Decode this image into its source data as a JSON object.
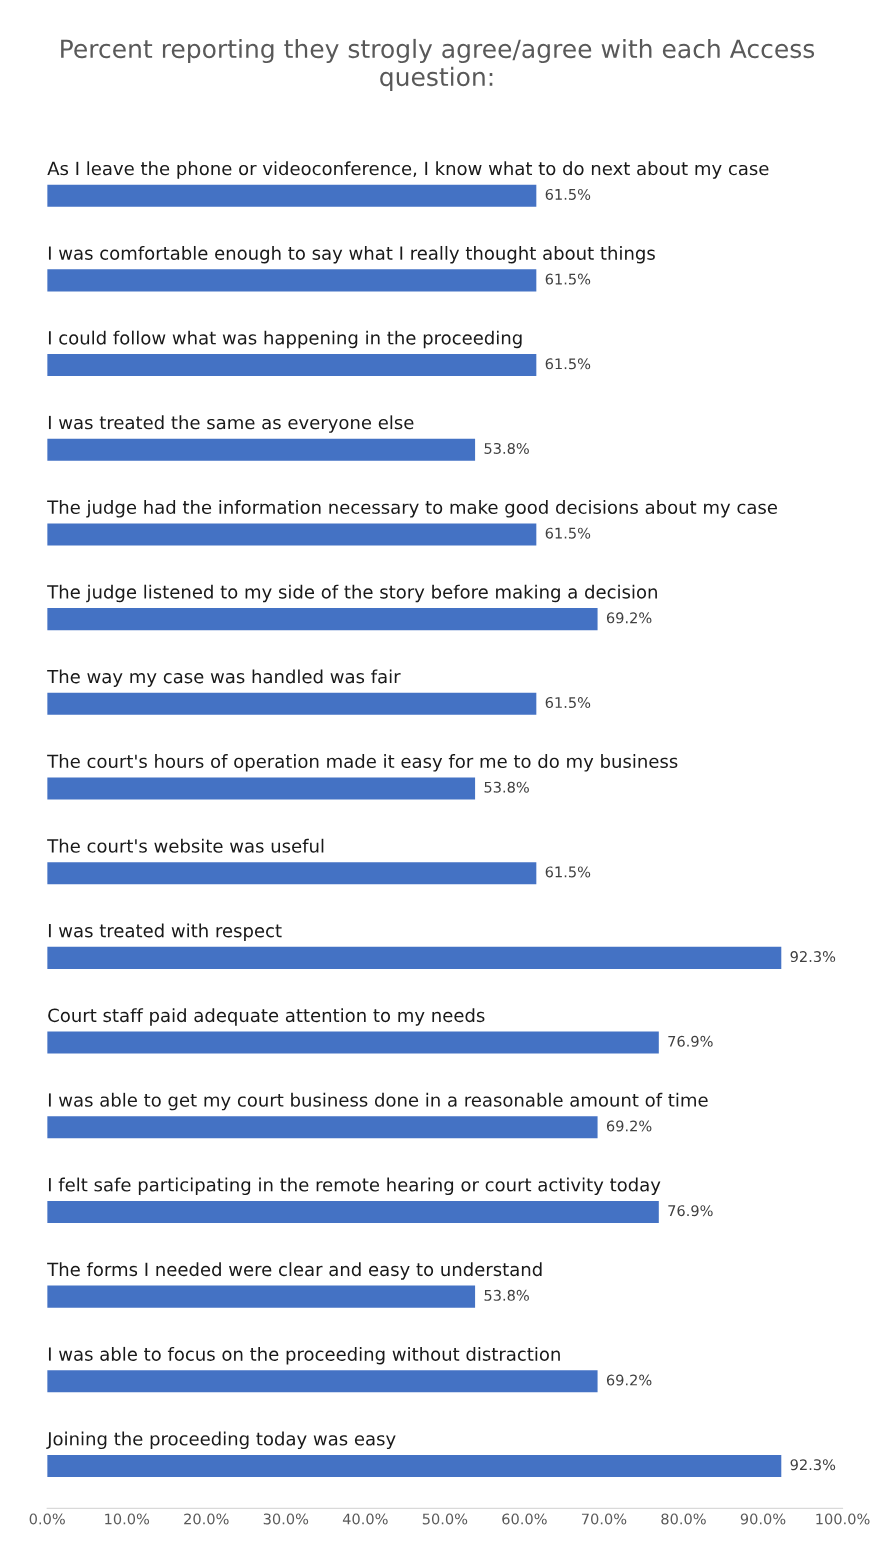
{
  "chart_data": {
    "type": "bar",
    "orientation": "horizontal",
    "title": "Percent reporting they strogly agree/agree with each Access question:",
    "categories": [
      "As I leave the phone or videoconference, I know what to do next about my case",
      "I was comfortable enough to say what I really thought about things",
      "I could follow what was happening in the proceeding",
      "I was treated the same as everyone else",
      "The judge had the information necessary to make good decisions about my case",
      "The judge listened to my side of the story before making a decision",
      "The way my case was handled was fair",
      "The court's hours of operation made it easy for me to do my business",
      "The court's website was useful",
      "I was treated with respect",
      "Court staff paid adequate attention to my needs",
      "I was able to get my court business done in a reasonable amount of time",
      "I felt safe participating in the remote hearing or court activity today",
      "The forms I needed were clear and easy to understand",
      "I was able to focus on the proceeding without distraction",
      "Joining the proceeding today was easy"
    ],
    "values": [
      61.5,
      61.5,
      61.5,
      53.8,
      61.5,
      69.2,
      61.5,
      53.8,
      61.5,
      92.3,
      76.9,
      69.2,
      76.9,
      53.8,
      69.2,
      92.3
    ],
    "value_labels": [
      "61.5%",
      "61.5%",
      "61.5%",
      "53.8%",
      "61.5%",
      "69.2%",
      "61.5%",
      "53.8%",
      "61.5%",
      "92.3%",
      "76.9%",
      "69.2%",
      "76.9%",
      "53.8%",
      "69.2%",
      "92.3%"
    ],
    "color": "#4472c4",
    "xlim": [
      0,
      100
    ],
    "xticks": [
      {
        "value": 0,
        "label": "0.0%"
      },
      {
        "value": 10,
        "label": "10.0%"
      },
      {
        "value": 20,
        "label": "20.0%"
      },
      {
        "value": 30,
        "label": "30.0%"
      },
      {
        "value": 40,
        "label": "40.0%"
      },
      {
        "value": 50,
        "label": "50.0%"
      },
      {
        "value": 60,
        "label": "60.0%"
      },
      {
        "value": 70,
        "label": "70.0%"
      },
      {
        "value": 80,
        "label": "80.0%"
      },
      {
        "value": 90,
        "label": "90.0%"
      },
      {
        "value": 100,
        "label": "100.0%"
      }
    ],
    "tick_labels": "x",
    "grid": false,
    "legend": false
  }
}
